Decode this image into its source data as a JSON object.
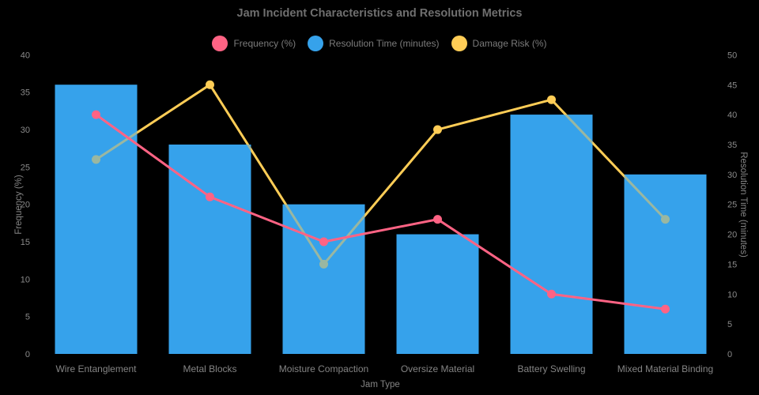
{
  "title": "Jam Incident Characteristics and Resolution Metrics",
  "legend": [
    {
      "label": "Frequency (%)",
      "color": "#FF6384"
    },
    {
      "label": "Resolution Time (minutes)",
      "color": "#36A2EB"
    },
    {
      "label": "Damage Risk (%)",
      "color": "#FFCD56"
    }
  ],
  "colors": {
    "background": "#000000",
    "pink": "#FF6384",
    "blue": "#36A2EB",
    "yellow": "#FFCD56"
  },
  "chart_data": {
    "type": "bar",
    "subtype": "combo-bar-line",
    "title": "Jam Incident Characteristics and Resolution Metrics",
    "xlabel": "Jam Type",
    "categories": [
      "Wire Entanglement",
      "Metal Blocks",
      "Moisture Compaction",
      "Oversize Material",
      "Battery Swelling",
      "Mixed Material Binding"
    ],
    "series": [
      {
        "name": "Frequency (%)",
        "type": "line",
        "axis": "left",
        "color": "#FF6384",
        "behind_bars": false,
        "values": [
          32,
          21,
          15,
          18,
          8,
          6
        ]
      },
      {
        "name": "Resolution Time (minutes)",
        "type": "bar",
        "axis": "right",
        "color": "#36A2EB",
        "behind_bars": false,
        "values": [
          45,
          35,
          25,
          20,
          40,
          30
        ]
      },
      {
        "name": "Damage Risk (%)",
        "type": "line",
        "axis": "left",
        "color": "#FFCD56",
        "behind_bars": true,
        "values": [
          26,
          36,
          12,
          30,
          34,
          18
        ]
      }
    ],
    "left_axis": {
      "label": "Frequency (%)",
      "min": 0,
      "max": 40,
      "step": 5
    },
    "right_axis": {
      "label": "Resolution Time (minutes)",
      "min": 0,
      "max": 50,
      "step": 5
    },
    "grid": false,
    "legend_position": "top",
    "plot_background": "#000000"
  }
}
